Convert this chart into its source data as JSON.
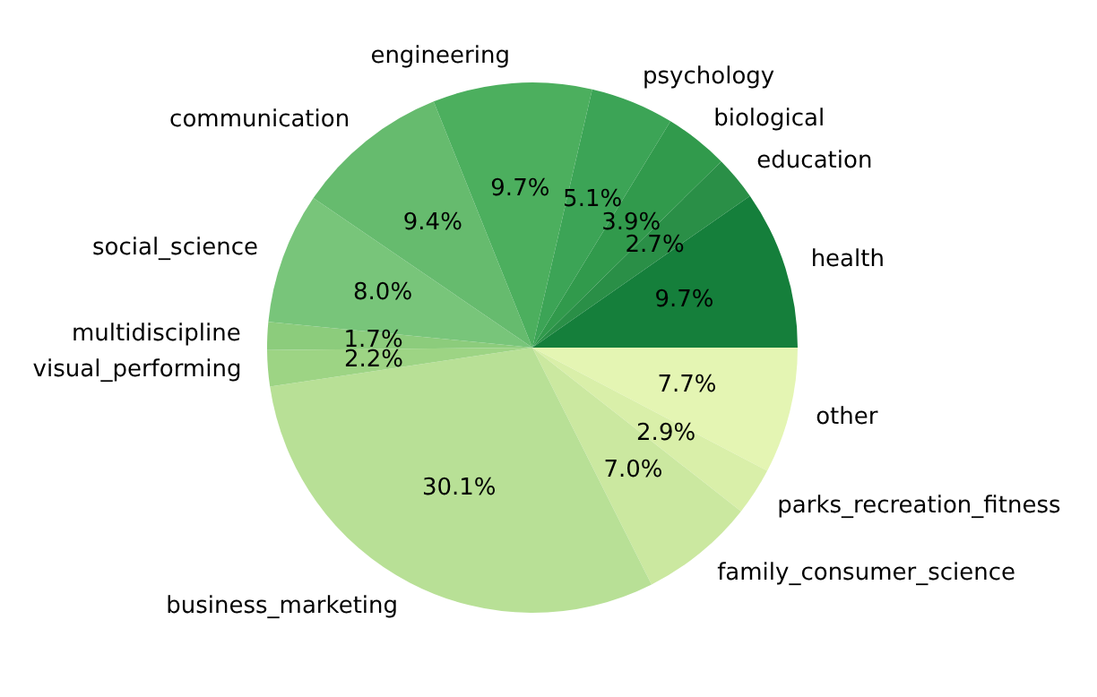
{
  "chart_data": {
    "type": "pie",
    "categories": [
      "health",
      "education",
      "biological",
      "psychology",
      "engineering",
      "communication",
      "social_science",
      "multidiscipline",
      "visual_performing",
      "business_marketing",
      "family_consumer_science",
      "parks_recreation_fitness",
      "other"
    ],
    "values": [
      9.7,
      2.7,
      3.9,
      5.1,
      9.7,
      9.4,
      8.0,
      1.7,
      2.2,
      30.1,
      7.0,
      2.9,
      7.7
    ],
    "value_labels": [
      "9.7%",
      "2.7%",
      "3.9%",
      "5.1%",
      "9.7%",
      "9.4%",
      "8.0%",
      "1.7%",
      "2.2%",
      "30.1%",
      "7.0%",
      "2.9%",
      "7.7%"
    ],
    "colors": [
      "#157f3b",
      "#2a8f47",
      "#319a4c",
      "#3ca456",
      "#4caf5e",
      "#66bb6e",
      "#78c57a",
      "#8ccc7c",
      "#9dd484",
      "#b8e096",
      "#cbe8a0",
      "#d9efa9",
      "#e4f5b3"
    ],
    "legend": false
  }
}
